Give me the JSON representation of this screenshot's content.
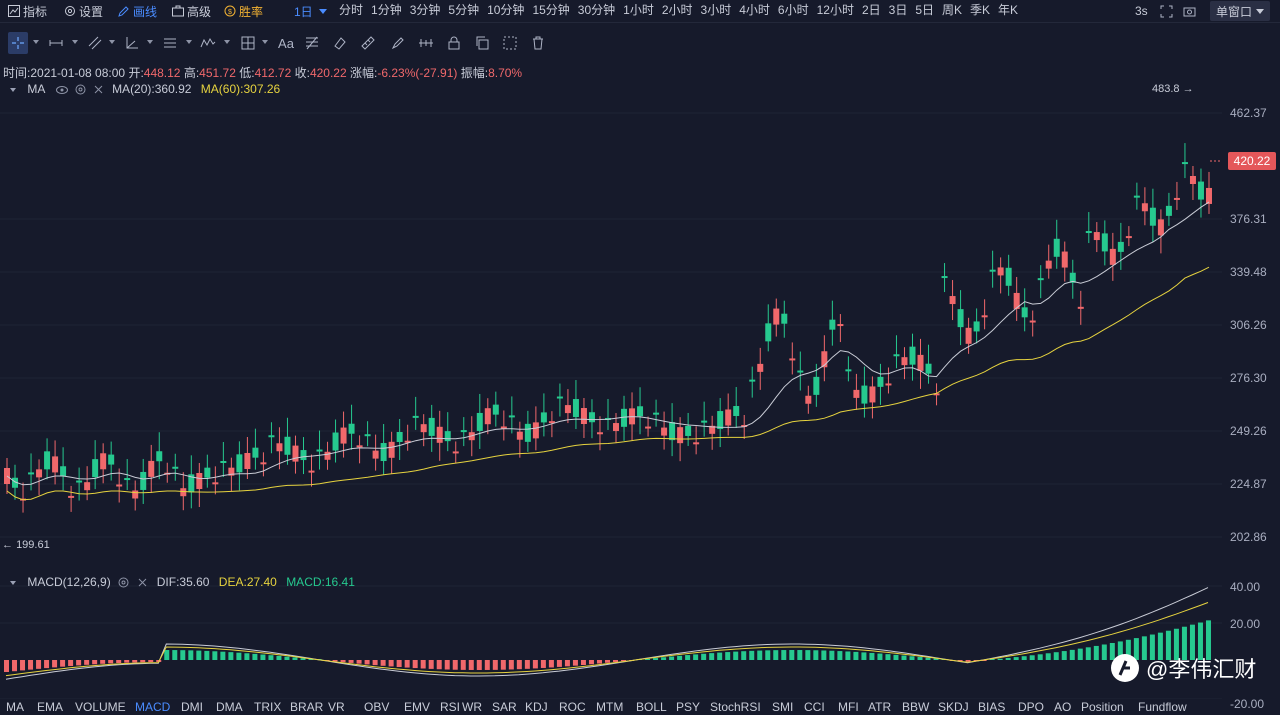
{
  "toolbar": {
    "indicators": "指标",
    "settings": "设置",
    "draw": "画线",
    "advanced": "高级",
    "win_rate": "胜率",
    "period_selected": "1日",
    "periods": [
      "分时",
      "1分钟",
      "3分钟",
      "5分钟",
      "10分钟",
      "15分钟",
      "30分钟",
      "1小时",
      "2小时",
      "3小时",
      "4小时",
      "6小时",
      "12小时",
      "2日",
      "3日",
      "5日",
      "周K",
      "季K",
      "年K"
    ],
    "refresh": "3s",
    "window_mode": "单窗口"
  },
  "drawing_tools": {
    "text_tool": "Aa"
  },
  "info": {
    "time_label": "时间:",
    "time": "2021-01-08 08:00",
    "open_label": "开:",
    "open": "448.12",
    "high_label": "高:",
    "high": "451.72",
    "low_label": "低:",
    "low": "412.72",
    "close_label": "收:",
    "close": "420.22",
    "change_label": "涨幅:",
    "change": "-6.23%(-27.91)",
    "amplitude_label": "振幅:",
    "amplitude": "8.70%"
  },
  "ma": {
    "name": "MA",
    "ma20_label": "MA(20):",
    "ma20": "360.92",
    "ma60_label": "MA(60):",
    "ma60": "307.26"
  },
  "macd": {
    "name": "MACD(12,26,9)",
    "dif_label": "DIF:",
    "dif": "35.60",
    "dea_label": "DEA:",
    "dea": "27.40",
    "macd_label": "MACD:",
    "macd": "16.41"
  },
  "price_axis": [
    "462.37",
    "420.22",
    "376.31",
    "339.48",
    "306.26",
    "276.30",
    "249.26",
    "224.87",
    "202.86"
  ],
  "last_price": "420.22",
  "max_label": "483.8",
  "min_label": "199.61",
  "macd_axis": [
    "40.00",
    "20.00",
    "-20.00"
  ],
  "indicator_tabs": [
    "MA",
    "EMA",
    "VOLUME",
    "MACD",
    "DMI",
    "DMA",
    "TRIX",
    "BRAR",
    "VR",
    "OBV",
    "EMV",
    "RSI",
    "WR",
    "SAR",
    "KDJ",
    "ROC",
    "MTM",
    "BOLL",
    "PSY",
    "StochRSI",
    "SMI",
    "CCI",
    "MFI",
    "ATR",
    "BBW",
    "SKDJ",
    "BIAS",
    "DPO",
    "AO",
    "Position",
    "Fundflow"
  ],
  "active_tab": "MACD",
  "watermark": "@李伟汇财",
  "colors": {
    "up": "#26c98f",
    "down": "#f0686b",
    "ma20": "#c9ccd6",
    "ma60": "#e6d33f",
    "background": "#161a2b",
    "accent": "#4a8cff"
  }
}
